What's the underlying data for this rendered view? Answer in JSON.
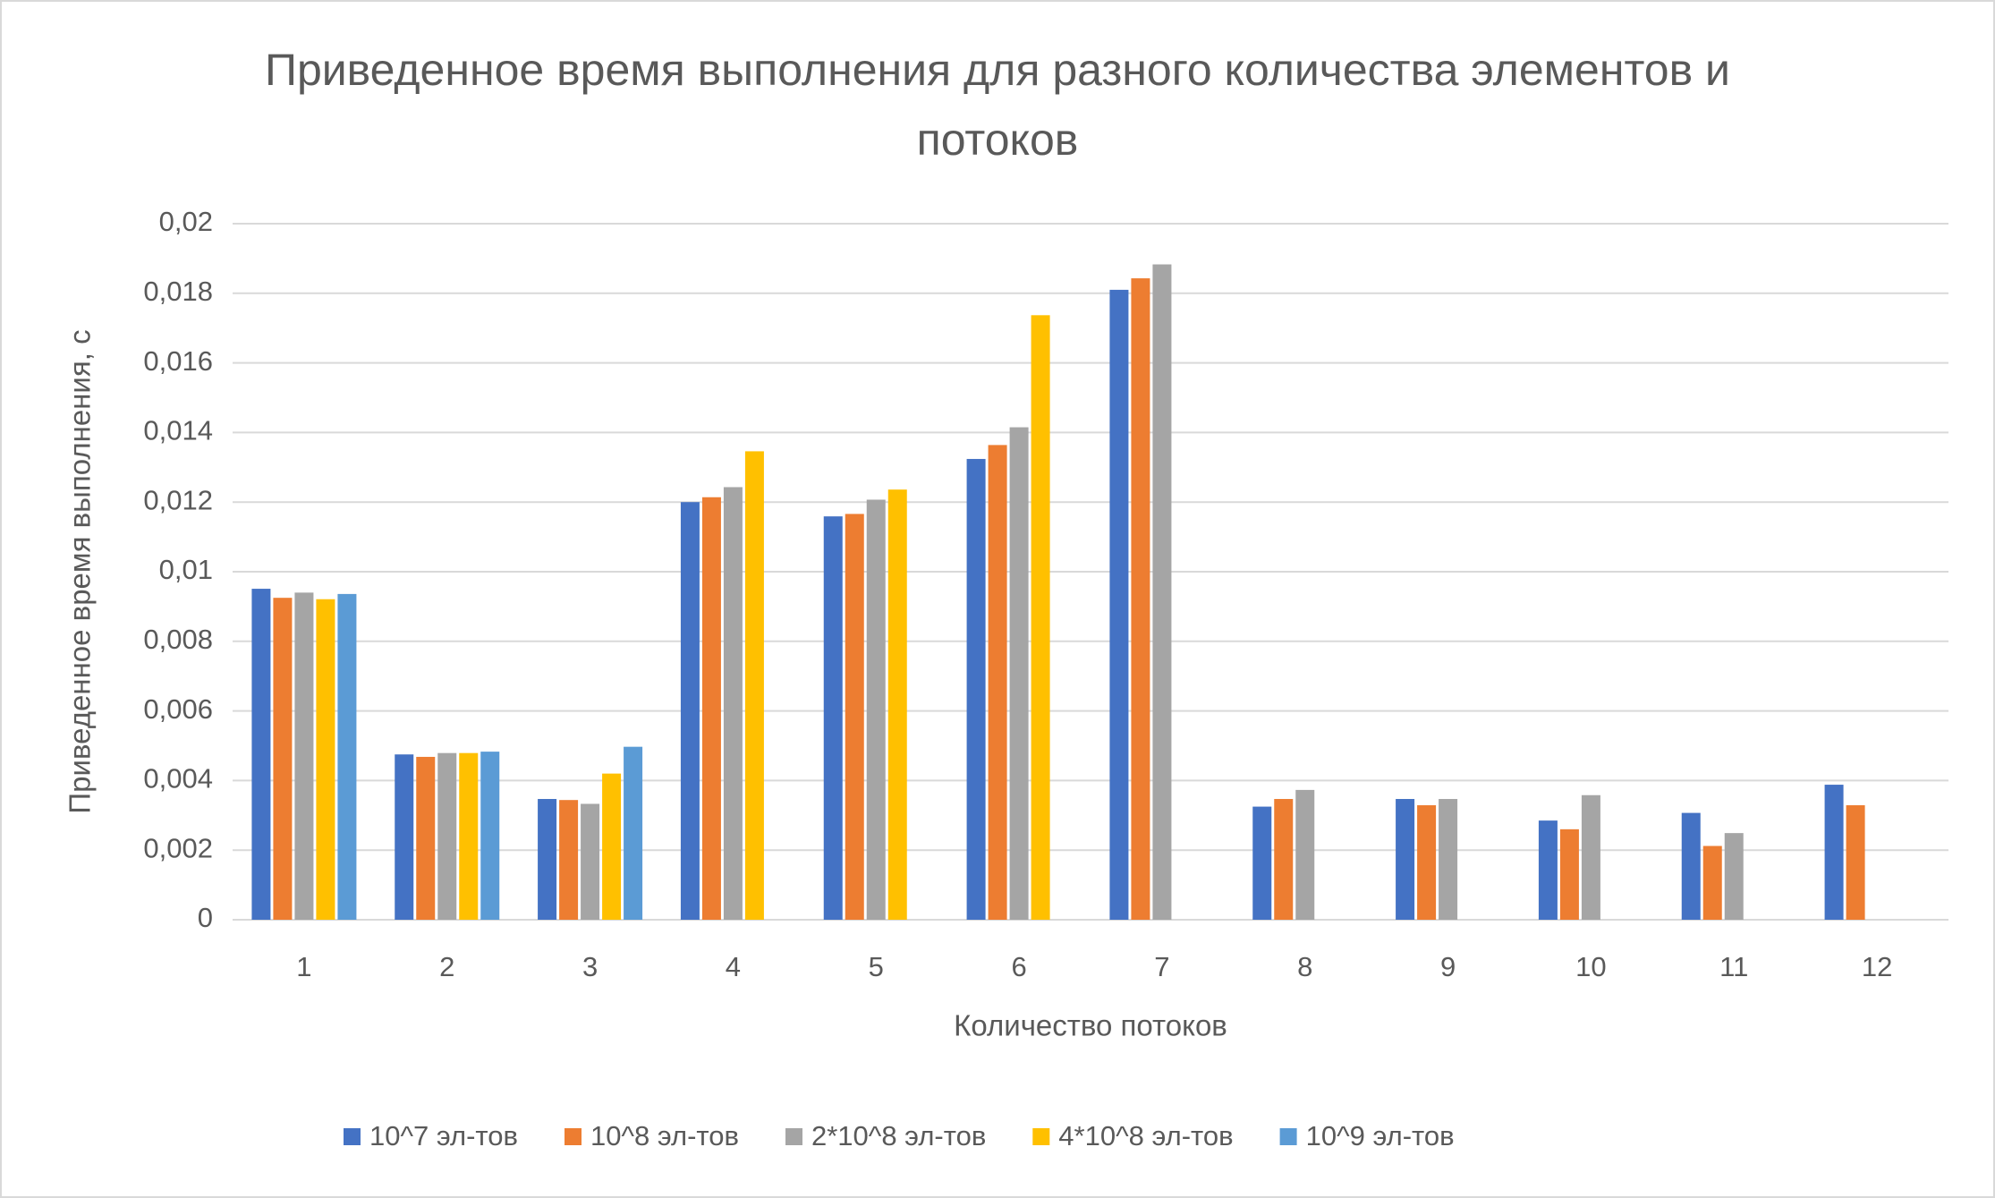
{
  "chart_data": {
    "type": "bar",
    "title": "Приведенное время выполнения для разного количества элементов и потоков",
    "x_label": "Количество потоков",
    "y_label": "Приведенное время выполнения, с",
    "categories": [
      "1",
      "2",
      "3",
      "4",
      "5",
      "6",
      "7",
      "8",
      "9",
      "10",
      "11",
      "12"
    ],
    "series": [
      {
        "name": "10^7 эл-тов",
        "color": "#4472c4",
        "values": [
          0.00951,
          0.00475,
          0.00347,
          0.012,
          0.01159,
          0.01324,
          0.0181,
          0.00325,
          0.00347,
          0.00285,
          0.00307,
          0.00388
        ]
      },
      {
        "name": "10^8 эл-тов",
        "color": "#ed7d31",
        "values": [
          0.00925,
          0.00468,
          0.00344,
          0.01214,
          0.01166,
          0.01364,
          0.01843,
          0.00347,
          0.00329,
          0.0026,
          0.00212,
          0.00329
        ]
      },
      {
        "name": "2*10^8 эл-тов",
        "color": "#a5a5a5",
        "values": [
          0.0094,
          0.00479,
          0.00333,
          0.01243,
          0.01207,
          0.01415,
          0.01883,
          0.00373,
          0.00347,
          0.00358,
          0.00249,
          null
        ]
      },
      {
        "name": "4*10^8 эл-тов",
        "color": "#ffc000",
        "values": [
          0.00921,
          0.00479,
          0.0042,
          0.01346,
          0.01236,
          0.01737,
          null,
          null,
          null,
          null,
          null,
          null
        ]
      },
      {
        "name": "10^9 эл-тов",
        "color": "#5b9bd5",
        "values": [
          0.00936,
          0.00483,
          0.00497,
          null,
          null,
          null,
          null,
          null,
          null,
          null,
          null,
          null
        ]
      }
    ],
    "ylim": [
      0,
      0.02
    ],
    "yticks": [
      0,
      {
        "value": 0.002,
        "label": "0,002"
      },
      {
        "value": 0.004,
        "label": "0,004"
      },
      {
        "value": 0.006,
        "label": "0,006"
      },
      {
        "value": 0.008,
        "label": "0,008"
      },
      {
        "value": 0.01,
        "label": "0,01"
      },
      {
        "value": 0.012,
        "label": "0,012"
      },
      {
        "value": 0.014,
        "label": "0,014"
      },
      {
        "value": 0.016,
        "label": "0,016"
      },
      {
        "value": 0.018,
        "label": "0,018"
      },
      {
        "value": 0.02,
        "label": "0,02"
      }
    ],
    "grid": true,
    "legend": "bottom"
  }
}
